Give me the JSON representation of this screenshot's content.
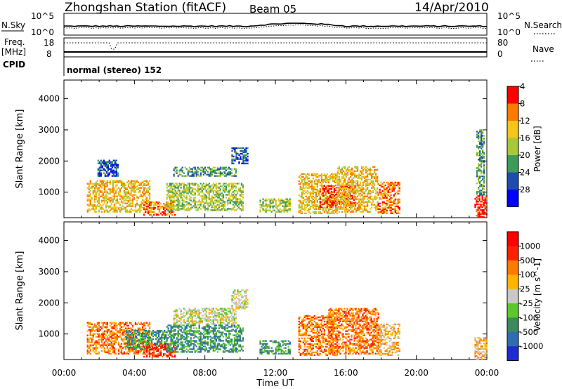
{
  "header": {
    "station": "Zhongshan Station (fitACF)",
    "beam": "Beam 05",
    "date": "14/Apr/2010"
  },
  "strip_labels": {
    "nsky": "N.Sky",
    "nsearch": "N.Search",
    "freq_line1": "Freq.",
    "freq_line2": "[MHz]",
    "nave": "Nave",
    "cpid": "CPID",
    "cpid_text": "normal (stereo) 152"
  },
  "strip_ticks": {
    "noise_left": [
      "10^5",
      "10^0"
    ],
    "noise_right": [
      "10^5",
      "10^0"
    ],
    "freq_left": [
      "18",
      "8"
    ],
    "nave_right": [
      "80",
      "0"
    ]
  },
  "chart_data": [
    {
      "type": "heatmap",
      "panel": "power",
      "ylabel": "Slant Range [km]",
      "xlabel": "Time UT",
      "x_ticks": [
        "00:00",
        "04:00",
        "08:00",
        "12:00",
        "16:00",
        "20:00",
        "00:00"
      ],
      "xlim_hours": [
        0,
        24
      ],
      "y_ticks": [
        1000,
        2000,
        3000,
        4000
      ],
      "ylim": [
        180,
        4600
      ],
      "colorbar": {
        "label": "Power [dB]",
        "ticks": [
          "4",
          "8",
          "12",
          "16",
          "20",
          "24",
          "28"
        ],
        "colors": [
          "#0000ff",
          "#1e4cae",
          "#3d9b5a",
          "#a8c83a",
          "#f5c518",
          "#ff7a00",
          "#ff0000"
        ]
      },
      "echo_regions": [
        {
          "t0": 1.3,
          "t1": 4.9,
          "r0": 350,
          "r1": 1350,
          "level": 4
        },
        {
          "t0": 1.9,
          "t1": 3.1,
          "r0": 1500,
          "r1": 2000,
          "level": 1
        },
        {
          "t0": 4.5,
          "t1": 6.3,
          "r0": 250,
          "r1": 700,
          "level": 5
        },
        {
          "t0": 5.8,
          "t1": 10.2,
          "r0": 400,
          "r1": 1300,
          "level": 3
        },
        {
          "t0": 6.2,
          "t1": 9.8,
          "r0": 1500,
          "r1": 1800,
          "level": 2
        },
        {
          "t0": 9.5,
          "t1": 10.4,
          "r0": 1900,
          "r1": 2400,
          "level": 1
        },
        {
          "t0": 11.1,
          "t1": 12.8,
          "r0": 350,
          "r1": 800,
          "level": 3
        },
        {
          "t0": 13.3,
          "t1": 15.5,
          "r0": 300,
          "r1": 1600,
          "level": 4
        },
        {
          "t0": 14.5,
          "t1": 16.5,
          "r0": 500,
          "r1": 1200,
          "level": 6
        },
        {
          "t0": 15.5,
          "t1": 17.8,
          "r0": 350,
          "r1": 1800,
          "level": 4
        },
        {
          "t0": 17.8,
          "t1": 19.0,
          "r0": 300,
          "r1": 1300,
          "level": 5
        },
        {
          "t0": 23.3,
          "t1": 24.0,
          "r0": 180,
          "r1": 900,
          "level": 6
        },
        {
          "t0": 23.4,
          "t1": 23.8,
          "r0": 900,
          "r1": 3000,
          "level": 2
        }
      ]
    },
    {
      "type": "heatmap",
      "panel": "velocity",
      "ylabel": "Slant Range [km]",
      "xlabel": "Time UT",
      "x_ticks": [
        "00:00",
        "04:00",
        "08:00",
        "12:00",
        "16:00",
        "20:00",
        "00:00"
      ],
      "xlim_hours": [
        0,
        24
      ],
      "y_ticks": [
        1000,
        2000,
        3000,
        4000
      ],
      "ylim": [
        180,
        4600
      ],
      "colorbar": {
        "label": "Velocity [m s^-1]",
        "ticks": [
          "1000",
          "500",
          "100",
          "25",
          "-25",
          "-100",
          "-500",
          "-1000"
        ],
        "colors": [
          "#1e2bd0",
          "#2f6db0",
          "#3a8a5e",
          "#5cc82a",
          "#c8c8c8",
          "#ffb400",
          "#ff7a00",
          "#ff2000",
          "#ff0000"
        ]
      },
      "echo_regions": [
        {
          "t0": 1.3,
          "t1": 4.9,
          "r0": 350,
          "r1": 1350,
          "level": 6
        },
        {
          "t0": 3.5,
          "t1": 5.8,
          "r0": 500,
          "r1": 1100,
          "level": 2
        },
        {
          "t0": 4.5,
          "t1": 6.3,
          "r0": 250,
          "r1": 700,
          "level": 7
        },
        {
          "t0": 5.8,
          "t1": 10.2,
          "r0": 400,
          "r1": 1300,
          "level": 2
        },
        {
          "t0": 6.2,
          "t1": 9.8,
          "r0": 1300,
          "r1": 1800,
          "level": 4
        },
        {
          "t0": 9.5,
          "t1": 10.4,
          "r0": 1800,
          "r1": 2400,
          "level": 4
        },
        {
          "t0": 11.1,
          "t1": 12.8,
          "r0": 350,
          "r1": 800,
          "level": 2
        },
        {
          "t0": 13.3,
          "t1": 15.5,
          "r0": 300,
          "r1": 1600,
          "level": 6
        },
        {
          "t0": 15.0,
          "t1": 17.8,
          "r0": 350,
          "r1": 1800,
          "level": 6
        },
        {
          "t0": 17.8,
          "t1": 19.0,
          "r0": 300,
          "r1": 1300,
          "level": 5
        },
        {
          "t0": 23.3,
          "t1": 24.0,
          "r0": 180,
          "r1": 900,
          "level": 5
        }
      ]
    }
  ]
}
